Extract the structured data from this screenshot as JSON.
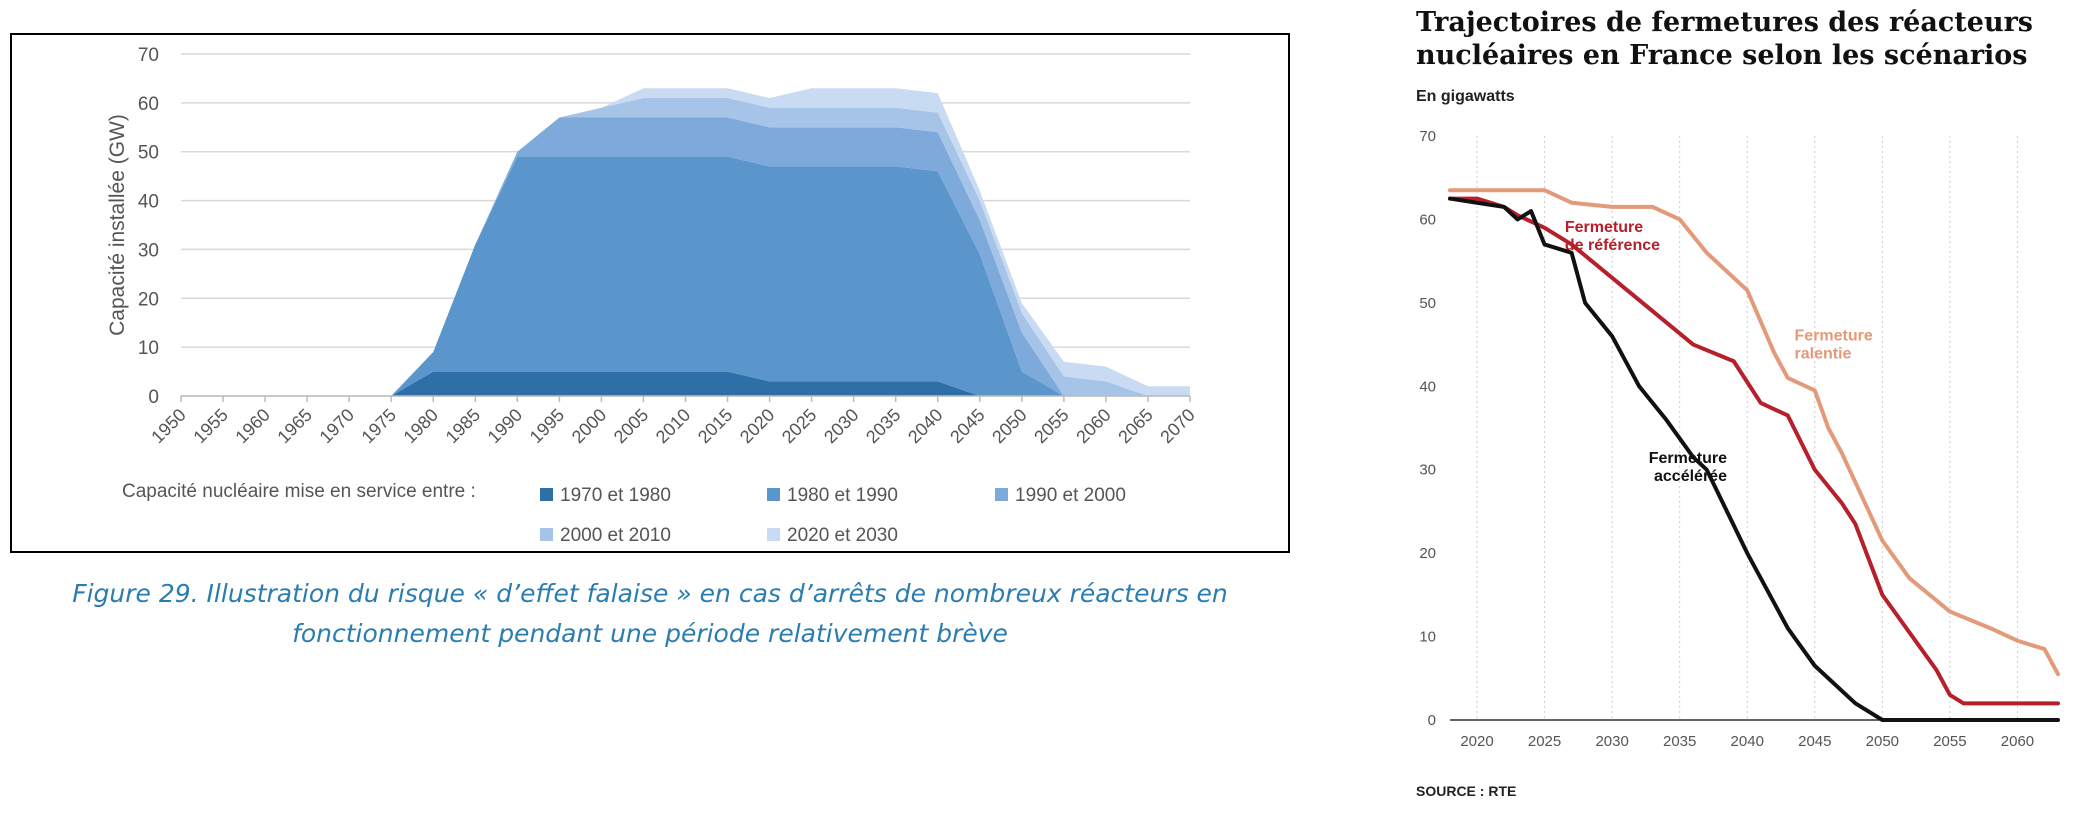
{
  "left_chart": {
    "caption_line1": "Figure 29. Illustration du risque « d’effet falaise » en cas d’arrêts de nombreux réacteurs en",
    "caption_line2": "fonctionnement pendant une période relativement brève",
    "legend_title": "Capacité nucléaire mise en service entre :"
  },
  "right_chart": {
    "title": "Trajectoires de fermetures des réacteurs\nnucléaires en France selon les scénarios",
    "subtitle": "En gigawatts",
    "source": "SOURCE : RTE"
  },
  "colors": {
    "s1970": "#2F6FA8",
    "s1980": "#5A95CC",
    "s1990": "#7EAADB",
    "s2000": "#A5C4E8",
    "s2020": "#C8DBF2",
    "gridline": "#D9D9D9",
    "reference": "#B5202A",
    "ralentie": "#E39A78",
    "acceleree": "#111111",
    "caption": "#2A7DB0"
  },
  "chart_data": [
    {
      "type": "area",
      "stacked": true,
      "title": "",
      "xlabel": "",
      "ylabel": "Capacité installée (GW)",
      "xlim": [
        1950,
        2070
      ],
      "ylim": [
        0,
        70
      ],
      "x_ticks": [
        1950,
        1955,
        1960,
        1965,
        1970,
        1975,
        1980,
        1985,
        1990,
        1995,
        2000,
        2005,
        2010,
        2015,
        2020,
        2025,
        2030,
        2035,
        2040,
        2045,
        2050,
        2055,
        2060,
        2065,
        2070
      ],
      "y_ticks": [
        0,
        10,
        20,
        30,
        40,
        50,
        60,
        70
      ],
      "grid": "horizontal",
      "legend_position": "bottom",
      "x": [
        1950,
        1955,
        1960,
        1965,
        1970,
        1975,
        1980,
        1985,
        1990,
        1995,
        2000,
        2005,
        2010,
        2015,
        2020,
        2025,
        2030,
        2035,
        2040,
        2045,
        2050,
        2055,
        2060,
        2065,
        2070
      ],
      "series": [
        {
          "name": "1970 et 1980",
          "color": "#2F6FA8",
          "values": [
            0,
            0,
            0,
            0,
            0,
            0,
            5,
            5,
            5,
            5,
            5,
            5,
            5,
            5,
            3,
            3,
            3,
            3,
            3,
            0,
            0,
            0,
            0,
            0,
            0
          ]
        },
        {
          "name": "1980 et 1990",
          "color": "#5A95CC",
          "values": [
            0,
            0,
            0,
            0,
            0,
            0,
            4,
            26,
            44,
            44,
            44,
            44,
            44,
            44,
            44,
            44,
            44,
            44,
            43,
            29,
            5,
            0,
            0,
            0,
            0
          ]
        },
        {
          "name": "1990 et 2000",
          "color": "#7EAADB",
          "values": [
            0,
            0,
            0,
            0,
            0,
            0,
            0,
            0,
            1,
            8,
            8,
            8,
            8,
            8,
            8,
            8,
            8,
            8,
            8,
            7,
            8,
            0,
            0,
            0,
            0
          ]
        },
        {
          "name": "2000 et 2010",
          "color": "#A5C4E8",
          "values": [
            0,
            0,
            0,
            0,
            0,
            0,
            0,
            0,
            0,
            0,
            2,
            4,
            4,
            4,
            4,
            4,
            4,
            4,
            4,
            4,
            4,
            4,
            3,
            0,
            0
          ]
        },
        {
          "name": "2020 et 2030",
          "color": "#C8DBF2",
          "values": [
            0,
            0,
            0,
            0,
            0,
            0,
            0,
            0,
            0,
            0,
            0,
            2,
            2,
            2,
            2,
            4,
            4,
            4,
            4,
            2,
            2,
            3,
            3,
            2,
            2
          ]
        }
      ]
    },
    {
      "type": "line",
      "title": "Trajectoires de fermetures des réacteurs nucléaires en France selon les scénarios",
      "subtitle": "En gigawatts",
      "xlim": [
        2018,
        2063
      ],
      "ylim": [
        0,
        70
      ],
      "x_ticks": [
        2020,
        2025,
        2030,
        2035,
        2040,
        2045,
        2050,
        2055,
        2060
      ],
      "y_ticks": [
        0,
        10,
        20,
        30,
        40,
        50,
        60,
        70
      ],
      "grid": "vertical-dotted",
      "series": [
        {
          "name": "Fermeture de référence",
          "label_lines": [
            "Fermeture",
            "de référence"
          ],
          "label_at": [
            2026.5,
            58.5
          ],
          "label_anchor": "start",
          "color": "#B5202A",
          "x": [
            2018,
            2020,
            2022,
            2023,
            2025,
            2027,
            2030,
            2033,
            2036,
            2039,
            2041,
            2043,
            2045,
            2047,
            2048,
            2050,
            2052,
            2054,
            2055,
            2056,
            2060,
            2063
          ],
          "y": [
            62.5,
            62.5,
            61.5,
            60.5,
            59,
            57,
            53,
            49,
            45,
            43,
            38,
            36.5,
            30,
            26,
            23.5,
            15,
            10.5,
            6,
            3,
            2,
            2,
            2
          ]
        },
        {
          "name": "Fermeture ralentie",
          "label_lines": [
            "Fermeture",
            "ralentie"
          ],
          "label_at": [
            2043.5,
            45.5
          ],
          "label_anchor": "start",
          "color": "#E39A78",
          "x": [
            2018,
            2025,
            2027,
            2030,
            2033,
            2035,
            2037,
            2040,
            2042,
            2043,
            2045,
            2046,
            2047,
            2049,
            2050,
            2052,
            2055,
            2058,
            2060,
            2062,
            2063
          ],
          "y": [
            63.5,
            63.5,
            62,
            61.5,
            61.5,
            60,
            56,
            51.5,
            44,
            41,
            39.5,
            35,
            32,
            25,
            21.5,
            17,
            13,
            11,
            9.5,
            8.5,
            5.5
          ]
        },
        {
          "name": "Fermeture accélérée",
          "label_lines": [
            "Fermeture",
            "accélérée"
          ],
          "label_at": [
            2038.5,
            30.8
          ],
          "label_anchor": "end",
          "color": "#111111",
          "x": [
            2018,
            2020,
            2022,
            2023,
            2024,
            2025,
            2027,
            2028,
            2030,
            2032,
            2034,
            2036,
            2037,
            2040,
            2043,
            2045,
            2048,
            2050,
            2055,
            2060,
            2063
          ],
          "y": [
            62.5,
            62,
            61.5,
            60,
            61,
            57,
            56,
            50,
            46,
            40,
            36,
            31.5,
            30,
            20,
            11,
            6.5,
            2,
            0,
            0,
            0,
            0
          ]
        }
      ]
    }
  ]
}
